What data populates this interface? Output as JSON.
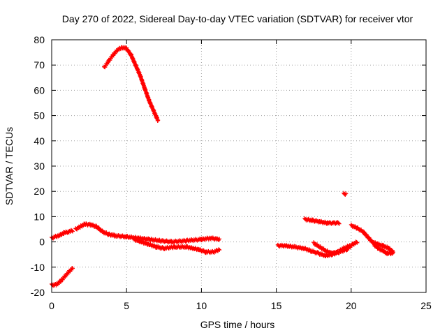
{
  "chart_data": {
    "type": "scatter",
    "title": "Day 270 of 2022, Sidereal Day-to-day VTEC variation (SDTVAR) for receiver vtor",
    "xlabel": "GPS time / hours",
    "ylabel": "SDTVAR / TECUs",
    "xlim": [
      0,
      25
    ],
    "ylim": [
      -20,
      80
    ],
    "xticks": [
      "0",
      "5",
      "10",
      "15",
      "20",
      "25"
    ],
    "yticks": [
      "-20",
      "-10",
      "0",
      "10",
      "20",
      "30",
      "40",
      "50",
      "60",
      "70",
      "80"
    ],
    "grid": true,
    "marker": "+",
    "color": "#ff0000",
    "series": [
      {
        "name": "trace-morning-high",
        "points": [
          [
            3.5,
            69
          ],
          [
            3.8,
            71.5
          ],
          [
            4.1,
            74
          ],
          [
            4.4,
            76
          ],
          [
            4.7,
            77
          ],
          [
            5.0,
            76.5
          ],
          [
            5.3,
            74
          ],
          [
            5.6,
            70
          ],
          [
            5.9,
            66
          ],
          [
            6.2,
            61
          ],
          [
            6.5,
            56
          ],
          [
            6.8,
            52
          ],
          [
            7.1,
            48
          ]
        ]
      },
      {
        "name": "trace-rise-0-2h",
        "points": [
          [
            0,
            1.5
          ],
          [
            0.2,
            2
          ],
          [
            0.5,
            2.5
          ],
          [
            0.8,
            3.5
          ],
          [
            1.1,
            4
          ],
          [
            1.4,
            4.5
          ]
        ]
      },
      {
        "name": "trace-morning-bump",
        "points": [
          [
            1.6,
            5
          ],
          [
            1.9,
            6
          ],
          [
            2.2,
            7
          ],
          [
            2.6,
            6.8
          ],
          [
            3.0,
            6
          ],
          [
            3.4,
            4
          ],
          [
            3.8,
            3
          ],
          [
            4.2,
            2.5
          ]
        ]
      },
      {
        "name": "trace-morning-low",
        "points": [
          [
            0,
            -17
          ],
          [
            0.3,
            -17
          ],
          [
            0.6,
            -15.5
          ],
          [
            0.9,
            -13.5
          ],
          [
            1.2,
            -11.5
          ],
          [
            1.4,
            -10.5
          ]
        ]
      },
      {
        "name": "trace-midday-upper",
        "points": [
          [
            4.2,
            2.5
          ],
          [
            5.0,
            2
          ],
          [
            5.8,
            1.5
          ],
          [
            6.5,
            1
          ],
          [
            7.2,
            0.5
          ],
          [
            8.0,
            0
          ],
          [
            9.0,
            0.5
          ],
          [
            10.0,
            1
          ],
          [
            10.6,
            1.5
          ],
          [
            11.2,
            1
          ]
        ]
      },
      {
        "name": "trace-midday-lower",
        "points": [
          [
            5.5,
            1
          ],
          [
            6.0,
            0
          ],
          [
            6.5,
            -1
          ],
          [
            7.0,
            -2
          ],
          [
            7.5,
            -2.5
          ],
          [
            8.2,
            -2
          ],
          [
            9.0,
            -2
          ],
          [
            9.8,
            -3
          ],
          [
            10.3,
            -4
          ],
          [
            10.8,
            -4
          ],
          [
            11.2,
            -3
          ]
        ]
      },
      {
        "name": "trace-afternoon-main",
        "points": [
          [
            15.1,
            -1.5
          ],
          [
            15.6,
            -1.5
          ],
          [
            16.2,
            -2
          ],
          [
            16.8,
            -2.5
          ],
          [
            17.3,
            -3.5
          ],
          [
            17.8,
            -4.5
          ],
          [
            18.3,
            -5.5
          ],
          [
            18.7,
            -5
          ],
          [
            19.2,
            -4
          ],
          [
            19.7,
            -3
          ],
          [
            20.1,
            -1
          ],
          [
            20.4,
            0
          ]
        ]
      },
      {
        "name": "trace-afternoon-arc",
        "points": [
          [
            17.5,
            -0.5
          ],
          [
            17.9,
            -2
          ],
          [
            18.3,
            -3.5
          ],
          [
            18.7,
            -4.5
          ],
          [
            19.1,
            -4
          ],
          [
            19.5,
            -2.5
          ],
          [
            19.9,
            -1.5
          ]
        ]
      },
      {
        "name": "trace-afternoon-high",
        "points": [
          [
            16.9,
            9
          ],
          [
            17.4,
            8.5
          ],
          [
            17.9,
            8
          ],
          [
            18.4,
            7.5
          ],
          [
            18.9,
            7.5
          ],
          [
            19.2,
            7.5
          ]
        ]
      },
      {
        "name": "trace-late-afternoon",
        "points": [
          [
            20.0,
            6.5
          ],
          [
            20.4,
            5.5
          ],
          [
            20.8,
            4
          ],
          [
            21.1,
            2
          ],
          [
            21.4,
            0
          ],
          [
            21.6,
            -0.5
          ],
          [
            22.1,
            -1.5
          ],
          [
            22.5,
            -2.5
          ],
          [
            22.8,
            -4
          ]
        ]
      },
      {
        "name": "trace-late-tail",
        "points": [
          [
            21.5,
            -1
          ],
          [
            21.8,
            -2.5
          ],
          [
            22.1,
            -3.5
          ],
          [
            22.4,
            -4.5
          ],
          [
            22.8,
            -4.5
          ]
        ]
      },
      {
        "name": "trace-outlier",
        "points": [
          [
            19.5,
            19
          ],
          [
            19.65,
            19
          ]
        ]
      }
    ]
  }
}
